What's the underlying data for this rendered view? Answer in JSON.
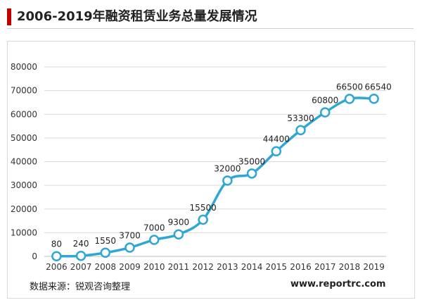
{
  "header": {
    "title": "2006-2019年融资租赁业务总量发展情况",
    "accent_color": "#c00000"
  },
  "footer": {
    "source": "数据来源：锐观咨询整理",
    "website": "www.reportrc.com"
  },
  "chart_data": {
    "type": "line",
    "title": "2006-2019年融资租赁业务总量发展情况",
    "xlabel": "",
    "ylabel": "",
    "categories": [
      "2006",
      "2007",
      "2008",
      "2009",
      "2010",
      "2011",
      "2012",
      "2013",
      "2014",
      "2015",
      "2016",
      "2017",
      "2018",
      "2019"
    ],
    "series": [
      {
        "values": [
          80,
          240,
          1550,
          3700,
          7000,
          9300,
          15500,
          32000,
          35000,
          44400,
          53300,
          60800,
          66500,
          66540
        ],
        "color": "#2ea7d4"
      }
    ],
    "data_labels": [
      "80",
      "240",
      "1550",
      "3700",
      "7000",
      "9300",
      "15500",
      "32000",
      "35000",
      "44400",
      "53300",
      "60800",
      "66500",
      "66540"
    ],
    "y_ticks": [
      "0",
      "10000",
      "20000",
      "30000",
      "40000",
      "50000",
      "60000",
      "70000",
      "80000"
    ],
    "ylim": [
      0,
      80000
    ],
    "grid": true,
    "legend": "none",
    "smooth": true,
    "marker": "hollow-circle"
  }
}
